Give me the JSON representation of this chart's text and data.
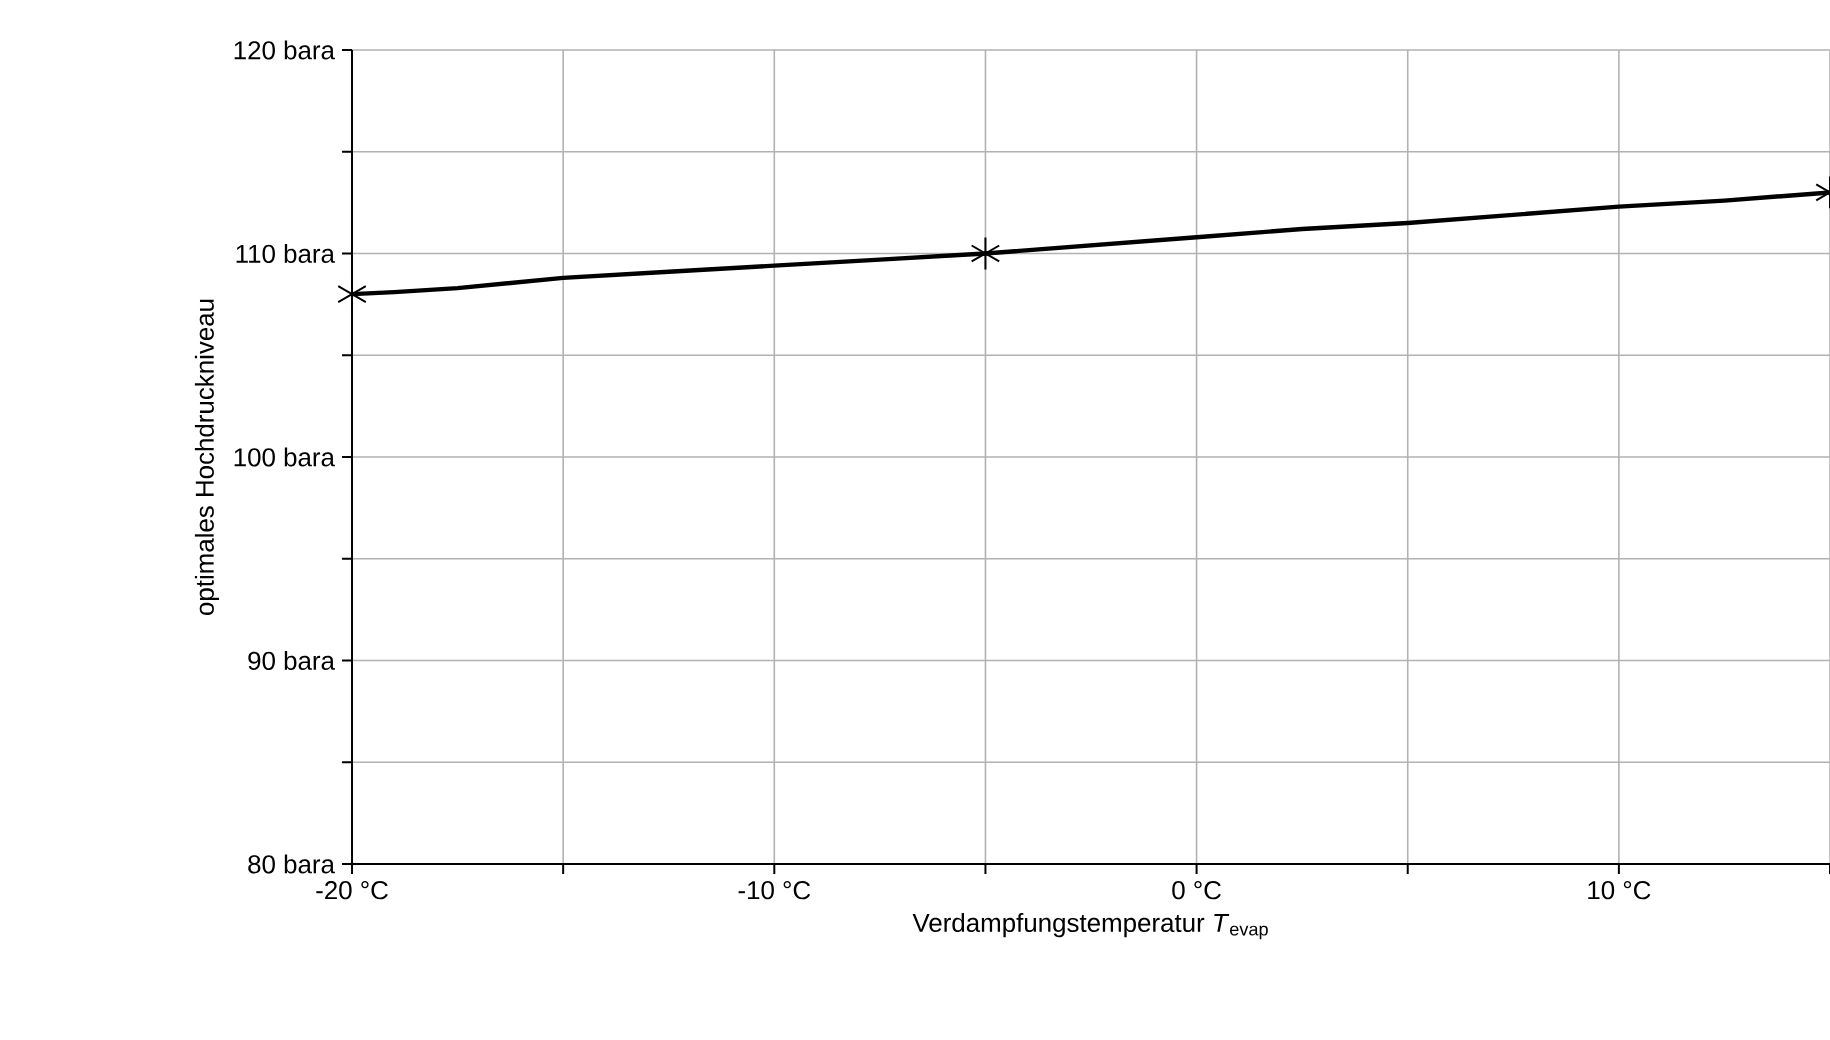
{
  "chart_data": {
    "type": "line",
    "xlabel": "Verdampfungstemperatur *T*$_{evap}$",
    "ylabel": "optimales Hochdruckniveau",
    "series": [
      {
        "color": "#000000",
        "marker": "none",
        "x": [
          -20,
          -19,
          -17.5,
          -15,
          -12.5,
          -10,
          -7.5,
          -5,
          -2.5,
          0,
          2.5,
          5,
          7.5,
          10,
          12.5,
          15
        ],
        "values": [
          108,
          108.1,
          108.3,
          108.8,
          109.1,
          109.4,
          109.7,
          110,
          110.4,
          110.8,
          111.2,
          111.5,
          111.9,
          112.3,
          112.6,
          113
        ]
      },
      {
        "type": "scatter",
        "color": "#000000",
        "marker": "cross",
        "x": [
          -20,
          -5,
          15
        ],
        "values": [
          108,
          110,
          113
        ]
      }
    ],
    "xlim": [
      -20,
      15
    ],
    "ylim": [
      80,
      120
    ],
    "xticks": [
      {
        "value": -20,
        "label": "-20 °C"
      },
      {
        "value": -15,
        "label": null
      },
      {
        "value": -10,
        "label": "-10 °C"
      },
      {
        "value": -5,
        "label": null
      },
      {
        "value": 0,
        "label": "0 °C"
      },
      {
        "value": 5,
        "label": null
      },
      {
        "value": 10,
        "label": "10 °C"
      },
      {
        "value": 15,
        "label": null
      }
    ],
    "yticks": [
      {
        "value": 80,
        "label": "80 bara"
      },
      {
        "value": 85,
        "label": null
      },
      {
        "value": 90,
        "label": "90 bara"
      },
      {
        "value": 95,
        "label": null
      },
      {
        "value": 100,
        "label": "100 bara"
      },
      {
        "value": 105,
        "label": null
      },
      {
        "value": 110,
        "label": "110 bara"
      },
      {
        "value": 115,
        "label": null
      },
      {
        "value": 120,
        "label": "120 bara"
      }
    ],
    "grid": true
  }
}
